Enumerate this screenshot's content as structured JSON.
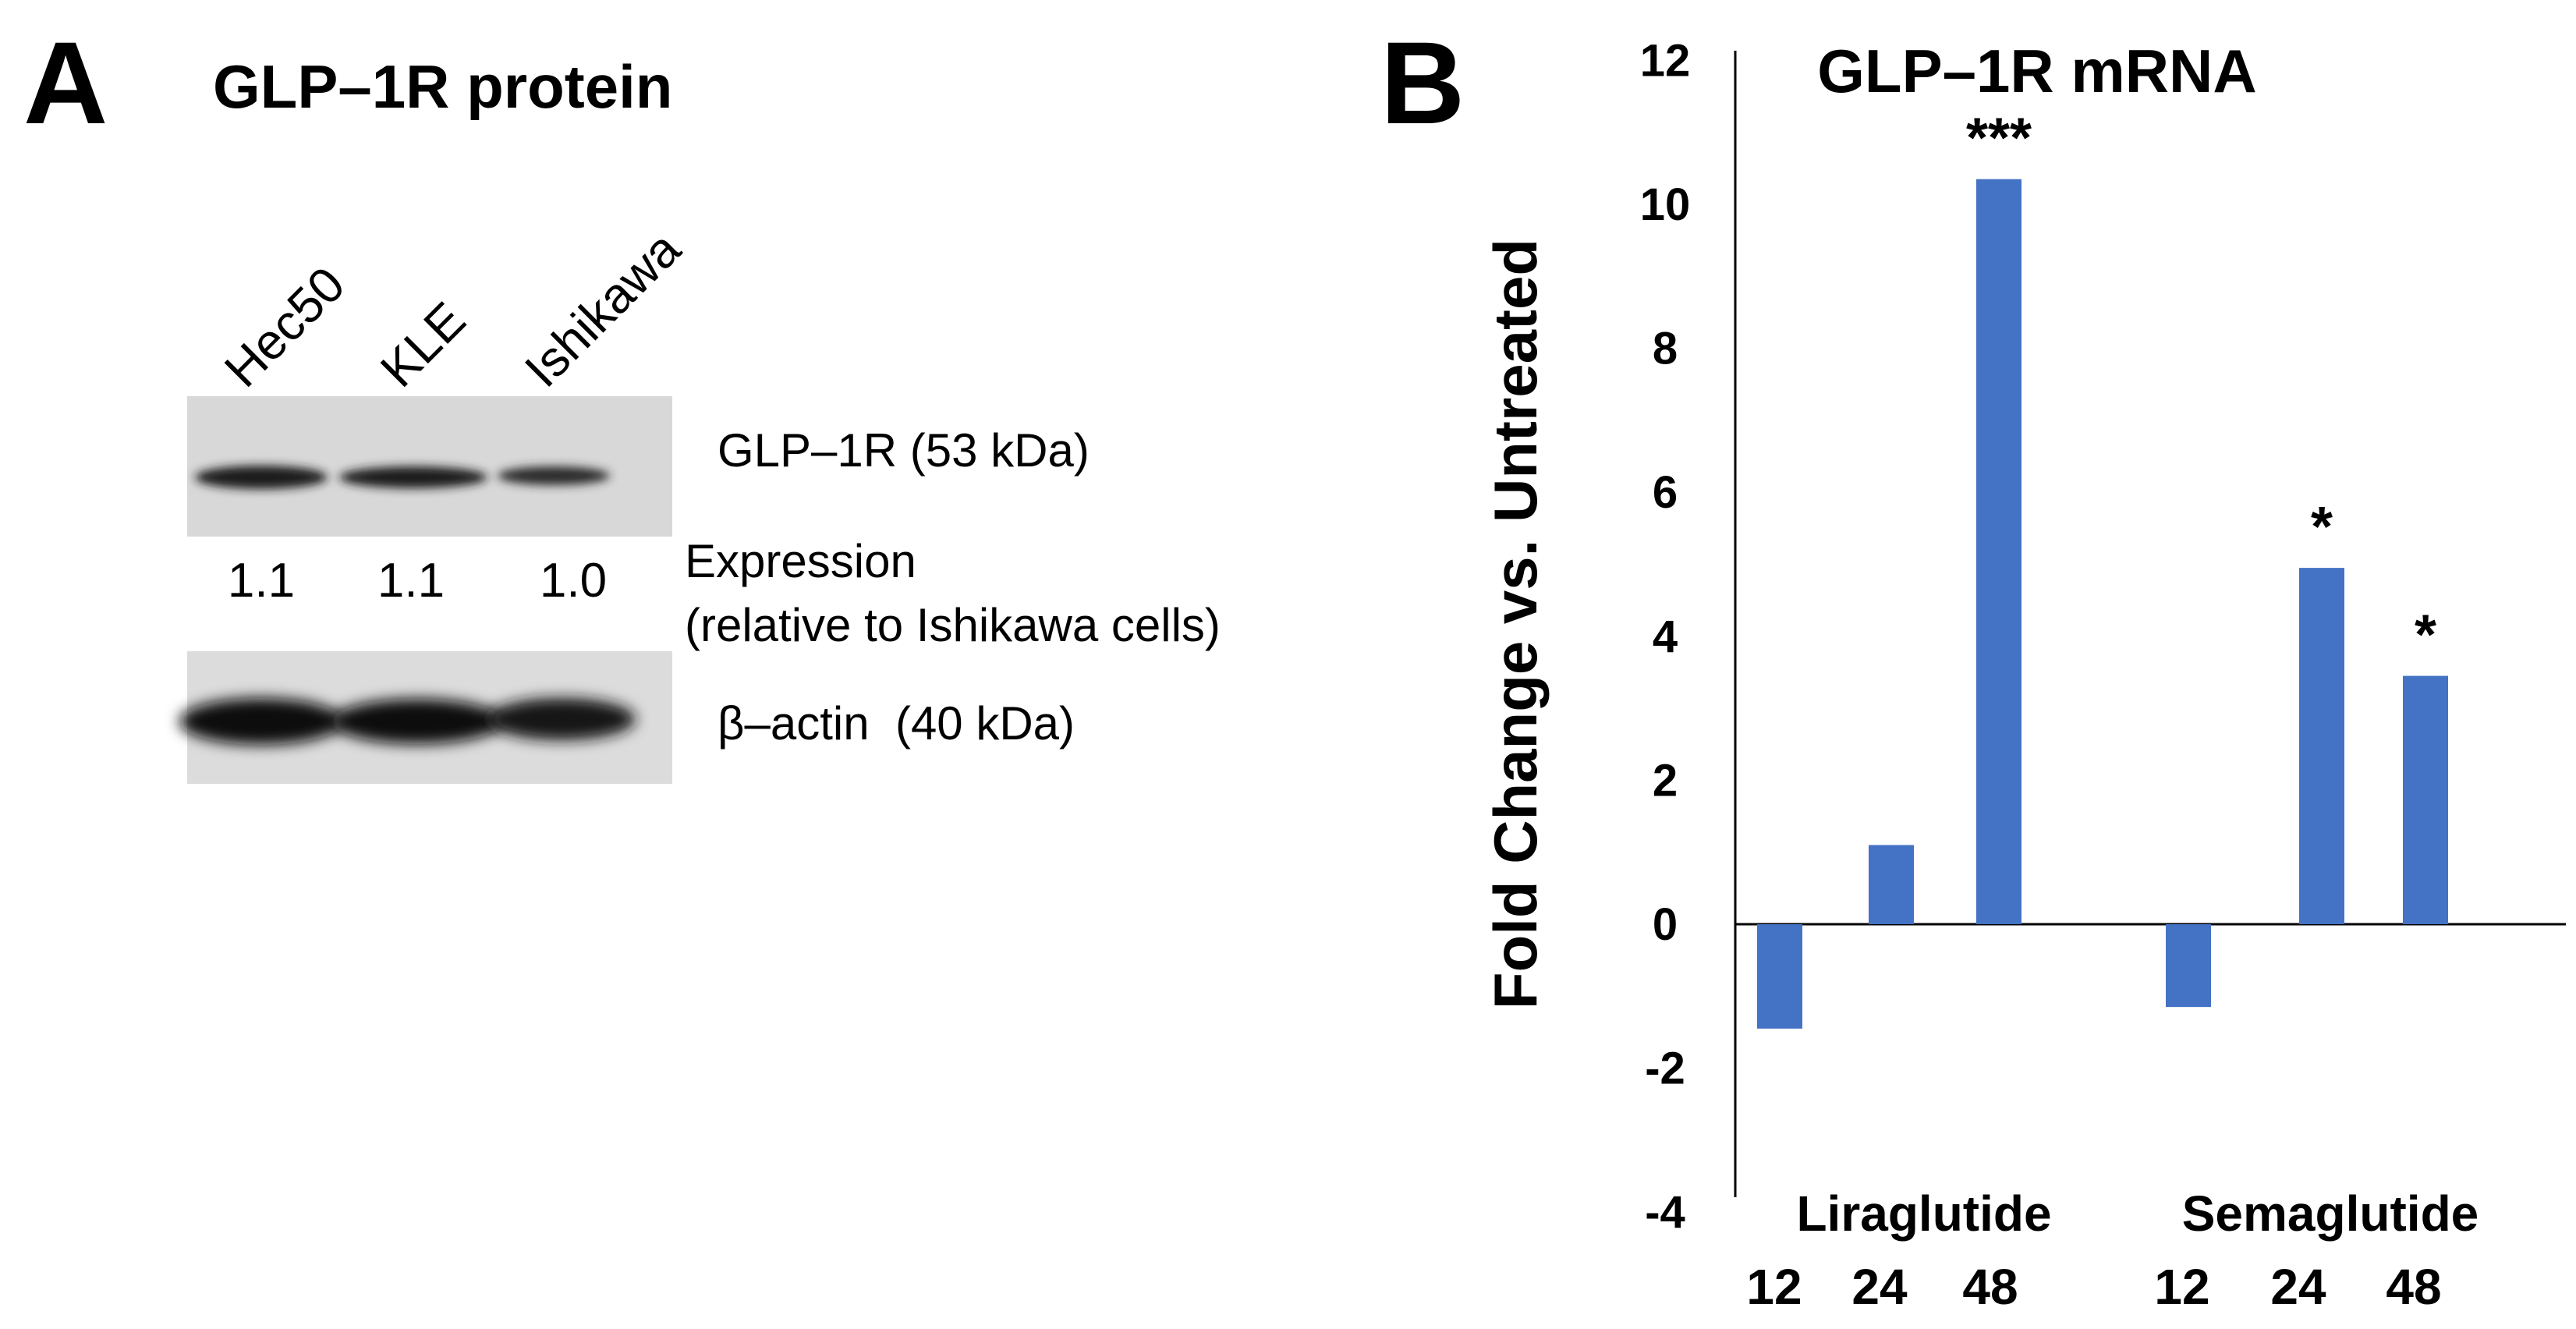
{
  "panel_a": {
    "letter": "A",
    "title": "GLP–1R protein",
    "lanes": [
      "Hec50",
      "KLE",
      "Ishikawa"
    ],
    "glp1r_label": "GLP–1R (53 kDa)",
    "expression_values": [
      "1.1",
      "1.1",
      "1.0"
    ],
    "expression_label_line1": "Expression",
    "expression_label_line2": "(relative to Ishikawa cells)",
    "actin_label": "β–actin  (40 kDa)"
  },
  "panel_b": {
    "letter": "B",
    "groups": [
      "Liraglutide",
      "Semaglutide"
    ]
  },
  "chart_data": {
    "type": "bar",
    "title": "GLP–1R mRNA",
    "xlabel": "",
    "ylabel": "Fold Change vs. Untreated",
    "categories": [
      "12",
      "24",
      "48",
      "12",
      "24",
      "48"
    ],
    "groups": [
      {
        "name": "Liraglutide",
        "categories": [
          "12",
          "24",
          "48"
        ]
      },
      {
        "name": "Semaglutide",
        "categories": [
          "12",
          "24",
          "48"
        ]
      }
    ],
    "values": [
      -1.45,
      1.1,
      10.35,
      -1.15,
      4.95,
      3.45
    ],
    "significance": [
      "",
      "",
      "***",
      "",
      "*",
      "*"
    ],
    "ylim": [
      -4,
      12
    ],
    "yticks": [
      -4,
      -2,
      0,
      2,
      4,
      6,
      8,
      10,
      12
    ],
    "bar_color": "#4472C4",
    "grid": false
  }
}
